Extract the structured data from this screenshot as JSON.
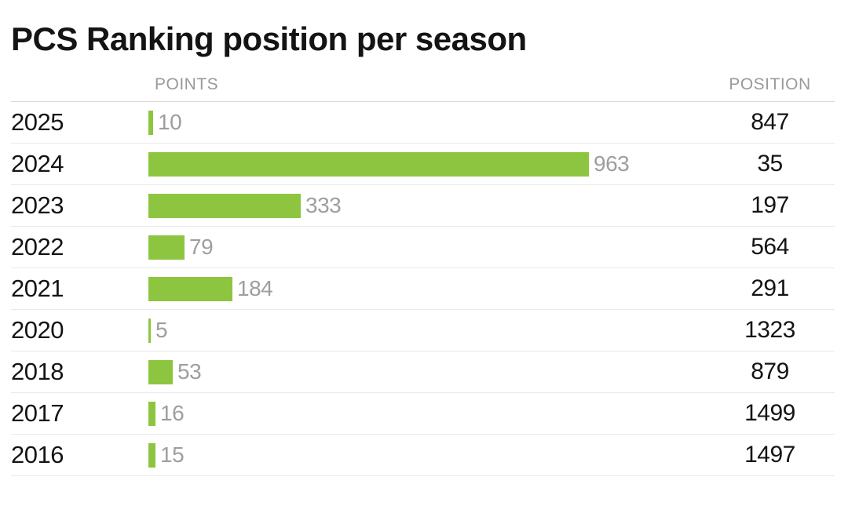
{
  "title": "PCS Ranking position per season",
  "columns": {
    "points": "POINTS",
    "position": "POSITION"
  },
  "rows": [
    {
      "year": "2025",
      "points": "10",
      "position": "847"
    },
    {
      "year": "2024",
      "points": "963",
      "position": "35"
    },
    {
      "year": "2023",
      "points": "333",
      "position": "197"
    },
    {
      "year": "2022",
      "points": "79",
      "position": "564"
    },
    {
      "year": "2021",
      "points": "184",
      "position": "291"
    },
    {
      "year": "2020",
      "points": "5",
      "position": "1323"
    },
    {
      "year": "2018",
      "points": "53",
      "position": "879"
    },
    {
      "year": "2017",
      "points": "16",
      "position": "1499"
    },
    {
      "year": "2016",
      "points": "15",
      "position": "1497"
    }
  ],
  "colors": {
    "bar_green": "#8dc540",
    "muted_text": "#9a9a9a",
    "text": "#141414",
    "row_divider": "#e9e9e9",
    "header_divider": "#d9d9d9"
  },
  "chart_data": {
    "type": "bar",
    "orientation": "horizontal",
    "title": "PCS Ranking position per season",
    "categories": [
      2025,
      2024,
      2023,
      2022,
      2021,
      2020,
      2018,
      2017,
      2016
    ],
    "series": [
      {
        "name": "POINTS",
        "values": [
          10,
          963,
          333,
          79,
          184,
          5,
          53,
          16,
          15
        ]
      },
      {
        "name": "POSITION",
        "values": [
          847,
          35,
          197,
          564,
          291,
          1323,
          879,
          1499,
          1497
        ]
      }
    ],
    "xlim": [
      0,
      963
    ],
    "bar_color": "#8dc540",
    "value_labels": true,
    "grid": false,
    "legend_position": "none"
  }
}
